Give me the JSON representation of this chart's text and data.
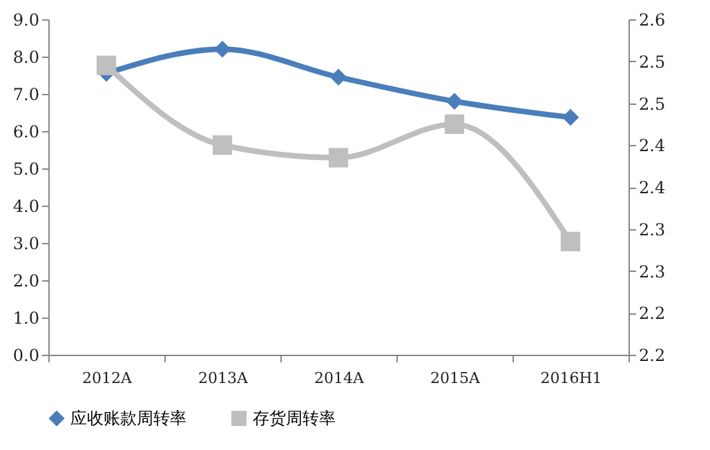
{
  "chart_data": {
    "type": "line",
    "categories": [
      "2012A",
      "2013A",
      "2014A",
      "2015A",
      "2016H1"
    ],
    "series": [
      {
        "name": "应收账款周转率",
        "color": "#4a7ebb",
        "marker": "diamond",
        "values": [
          7.55,
          8.2,
          7.45,
          6.8,
          6.37
        ]
      },
      {
        "name": "存货周转率",
        "color": "#bfbfbf",
        "marker": "square",
        "axis": "y2",
        "values": [
          2.545,
          2.45,
          2.435,
          2.475,
          2.335
        ]
      }
    ],
    "ylim": [
      0,
      9
    ],
    "yticks": [
      {
        "value": 0,
        "label": "0.0"
      },
      {
        "value": 1,
        "label": "1.0"
      },
      {
        "value": 2,
        "label": "2.0"
      },
      {
        "value": 3,
        "label": "3.0"
      },
      {
        "value": 4,
        "label": "4.0"
      },
      {
        "value": 5,
        "label": "5.0"
      },
      {
        "value": 6,
        "label": "6.0"
      },
      {
        "value": 7,
        "label": "7.0"
      },
      {
        "value": 8,
        "label": "8.0"
      },
      {
        "value": 9,
        "label": "9.0"
      }
    ],
    "y2lim": [
      2.2,
      2.6
    ],
    "y2ticks": [
      {
        "value": 2.2,
        "label": "2.2"
      },
      {
        "value": 2.25,
        "label": "2.2"
      },
      {
        "value": 2.3,
        "label": "2.3"
      },
      {
        "value": 2.35,
        "label": "2.3"
      },
      {
        "value": 2.4,
        "label": "2.4"
      },
      {
        "value": 2.45,
        "label": "2.4"
      },
      {
        "value": 2.5,
        "label": "2.5"
      },
      {
        "value": 2.55,
        "label": "2.5"
      },
      {
        "value": 2.6,
        "label": "2.6"
      }
    ],
    "grid": false,
    "legend": "bottom"
  }
}
